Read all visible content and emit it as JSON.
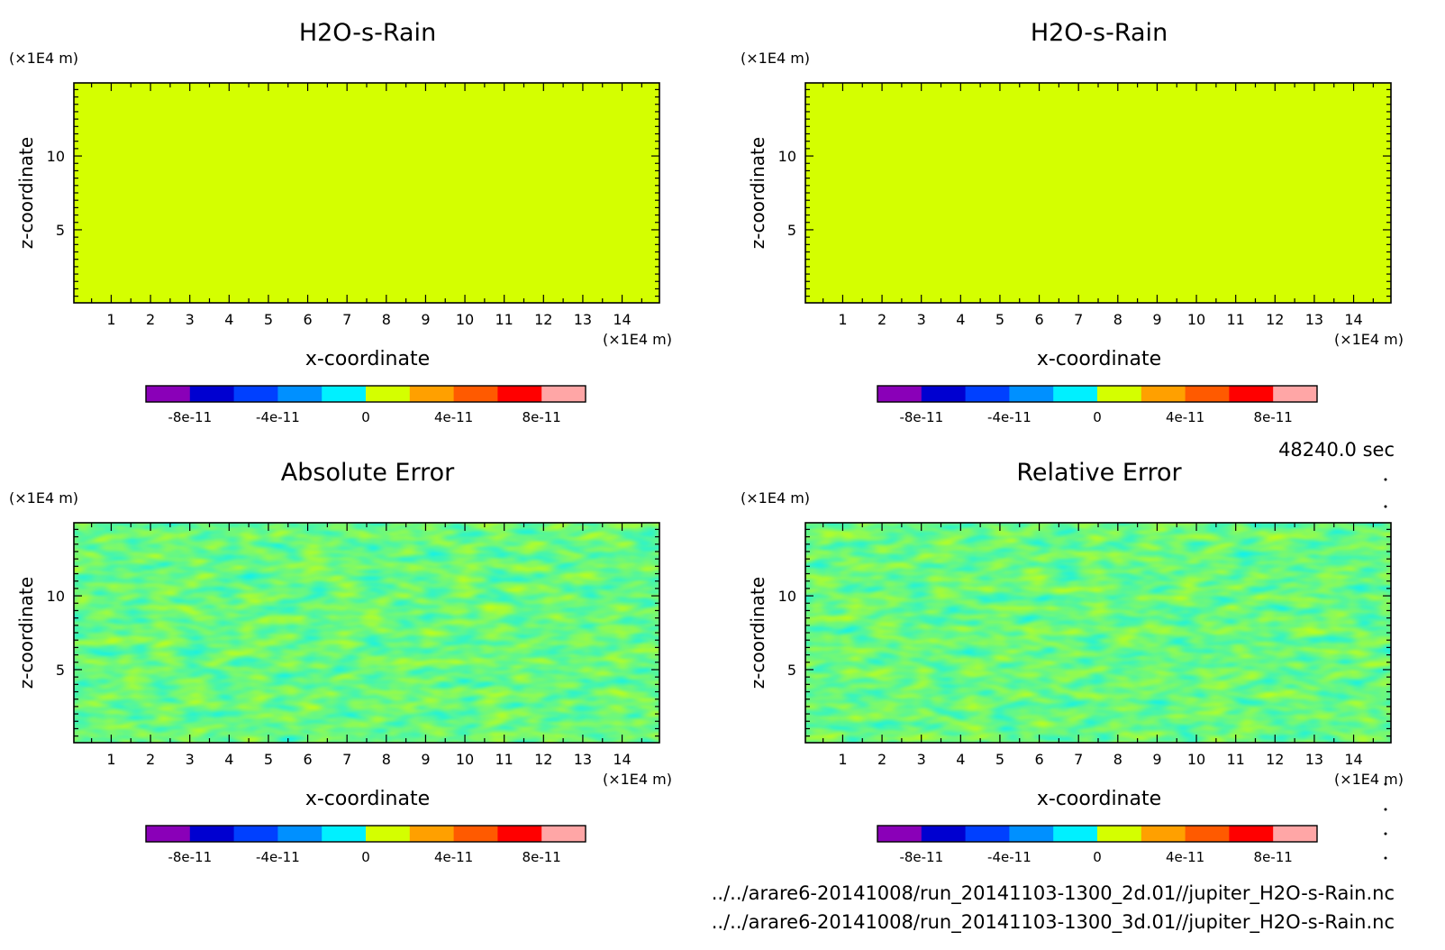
{
  "colorbar": {
    "colors": [
      "#8a00b8",
      "#0000d0",
      "#0040ff",
      "#0090ff",
      "#00f0ff",
      "#d4ff00",
      "#ffa000",
      "#ff5a00",
      "#ff0000",
      "#ffa6a6"
    ],
    "tick_labels": [
      "-8e-11",
      "-4e-11",
      "0",
      "4e-11",
      "8e-11"
    ],
    "range": [
      -1e-10,
      1e-10
    ]
  },
  "chart_data": [
    {
      "type": "heatmap",
      "title": "H2O-s-Rain",
      "xlabel": "x-coordinate",
      "ylabel": "z-coordinate",
      "x_unit": "(×1E4 m)",
      "y_unit": "(×1E4 m)",
      "xticks": [
        1,
        2,
        3,
        4,
        5,
        6,
        7,
        8,
        9,
        10,
        11,
        12,
        13,
        14
      ],
      "yticks": [
        5,
        10
      ],
      "xlim": [
        0.05,
        14.95
      ],
      "ylim": [
        0.05,
        14.95
      ],
      "fill_value": 0,
      "pattern": "uniform"
    },
    {
      "type": "heatmap",
      "title": "H2O-s-Rain",
      "xlabel": "x-coordinate",
      "ylabel": "z-coordinate",
      "x_unit": "(×1E4 m)",
      "y_unit": "(×1E4 m)",
      "xticks": [
        1,
        2,
        3,
        4,
        5,
        6,
        7,
        8,
        9,
        10,
        11,
        12,
        13,
        14
      ],
      "yticks": [
        5,
        10
      ],
      "xlim": [
        0.05,
        14.95
      ],
      "ylim": [
        0.05,
        14.95
      ],
      "fill_value": 0,
      "pattern": "uniform"
    },
    {
      "type": "heatmap",
      "title": "Absolute Error",
      "xlabel": "x-coordinate",
      "ylabel": "z-coordinate",
      "x_unit": "(×1E4 m)",
      "y_unit": "(×1E4 m)",
      "xticks": [
        1,
        2,
        3,
        4,
        5,
        6,
        7,
        8,
        9,
        10,
        11,
        12,
        13,
        14
      ],
      "yticks": [
        5,
        10
      ],
      "xlim": [
        0.05,
        14.95
      ],
      "ylim": [
        0.05,
        14.95
      ],
      "fill_value": 0,
      "pattern": "noise"
    },
    {
      "type": "heatmap",
      "title": "Relative Error",
      "xlabel": "x-coordinate",
      "ylabel": "z-coordinate",
      "x_unit": "(×1E4 m)",
      "y_unit": "(×1E4 m)",
      "xticks": [
        1,
        2,
        3,
        4,
        5,
        6,
        7,
        8,
        9,
        10,
        11,
        12,
        13,
        14
      ],
      "yticks": [
        5,
        10
      ],
      "xlim": [
        0.05,
        14.95
      ],
      "ylim": [
        0.05,
        14.95
      ],
      "fill_value": 0,
      "pattern": "noise"
    }
  ],
  "footer": {
    "time": "48240.0 sec",
    "file1": "../../arare6-20141008/run_20141103-1300_2d.01//jupiter_H2O-s-Rain.nc",
    "file2": "../../arare6-20141008/run_20141103-1300_3d.01//jupiter_H2O-s-Rain.nc"
  }
}
